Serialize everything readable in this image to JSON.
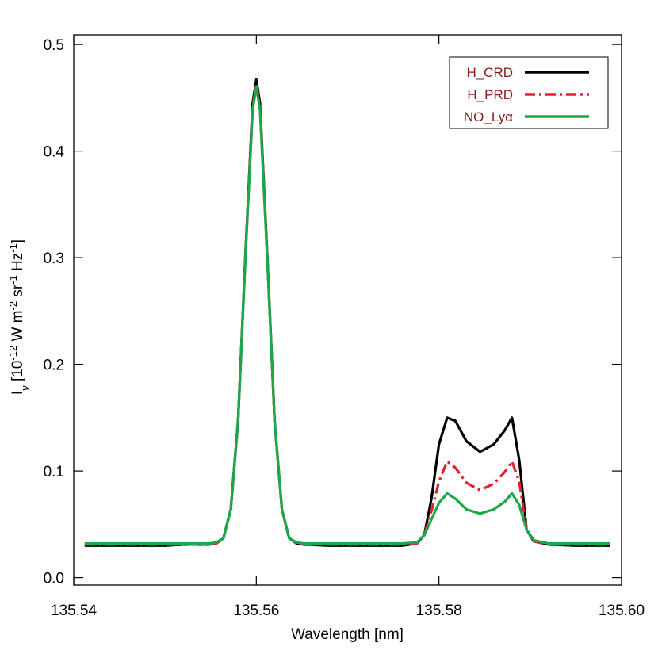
{
  "chart_data": {
    "type": "line",
    "x_label": "Wavelength [nm]",
    "y_label_parts": [
      "I",
      "ν",
      " [10",
      "-12",
      " W m",
      "-2",
      " sr",
      "-1",
      " Hz",
      "-1",
      "]"
    ],
    "xlim": [
      135.54,
      135.6
    ],
    "ylim": [
      -0.007,
      0.509
    ],
    "xticks": [
      135.54,
      135.56,
      135.58,
      {
        "value": 135.6,
        "label": "135.60"
      }
    ],
    "yticks": [
      {
        "value": 0,
        "label": "0.0"
      },
      0.1,
      0.2,
      0.3,
      0.4,
      0.5
    ],
    "legend_loc": "upper right",
    "x": [
      135.5412,
      135.5452,
      135.55,
      135.552,
      135.5548,
      135.5556,
      135.5564,
      135.5572,
      135.558,
      135.5588,
      135.5596,
      135.56,
      135.5604,
      135.5612,
      135.562,
      135.5628,
      135.5636,
      135.5644,
      135.5652,
      135.568,
      135.572,
      135.576,
      135.5776,
      135.5784,
      135.5792,
      135.58,
      135.5809,
      135.5818,
      135.583,
      135.5845,
      135.586,
      135.5872,
      135.588,
      135.5888,
      135.5896,
      135.5904,
      135.592,
      135.595,
      135.5987
    ],
    "series": [
      {
        "name": "H_CRD",
        "color": "#000000",
        "dash": "solid",
        "values": [
          0.03,
          0.03,
          0.03,
          0.031,
          0.031,
          0.032,
          0.037,
          0.064,
          0.147,
          0.302,
          0.445,
          0.467,
          0.445,
          0.302,
          0.147,
          0.064,
          0.037,
          0.032,
          0.031,
          0.03,
          0.03,
          0.03,
          0.032,
          0.04,
          0.075,
          0.125,
          0.15,
          0.147,
          0.128,
          0.118,
          0.125,
          0.138,
          0.15,
          0.11,
          0.045,
          0.034,
          0.031,
          0.03,
          0.03
        ]
      },
      {
        "name": "H_PRD",
        "color": "#e3202a",
        "dash": "dashdot",
        "values": [
          0.031,
          0.031,
          0.031,
          0.031,
          0.031,
          0.032,
          0.037,
          0.064,
          0.147,
          0.3,
          0.441,
          0.463,
          0.441,
          0.3,
          0.147,
          0.064,
          0.037,
          0.032,
          0.031,
          0.031,
          0.031,
          0.031,
          0.032,
          0.04,
          0.063,
          0.09,
          0.109,
          0.103,
          0.089,
          0.082,
          0.088,
          0.099,
          0.109,
          0.09,
          0.045,
          0.034,
          0.031,
          0.031,
          0.031
        ]
      },
      {
        "name": "NO_Lyα",
        "color": "#1aa84a",
        "dash": "solid",
        "values": [
          0.032,
          0.032,
          0.032,
          0.032,
          0.032,
          0.033,
          0.037,
          0.064,
          0.147,
          0.299,
          0.439,
          0.46,
          0.439,
          0.299,
          0.147,
          0.064,
          0.037,
          0.033,
          0.032,
          0.032,
          0.032,
          0.032,
          0.033,
          0.04,
          0.055,
          0.07,
          0.079,
          0.074,
          0.064,
          0.06,
          0.064,
          0.071,
          0.079,
          0.068,
          0.045,
          0.035,
          0.032,
          0.032,
          0.032
        ]
      }
    ]
  }
}
